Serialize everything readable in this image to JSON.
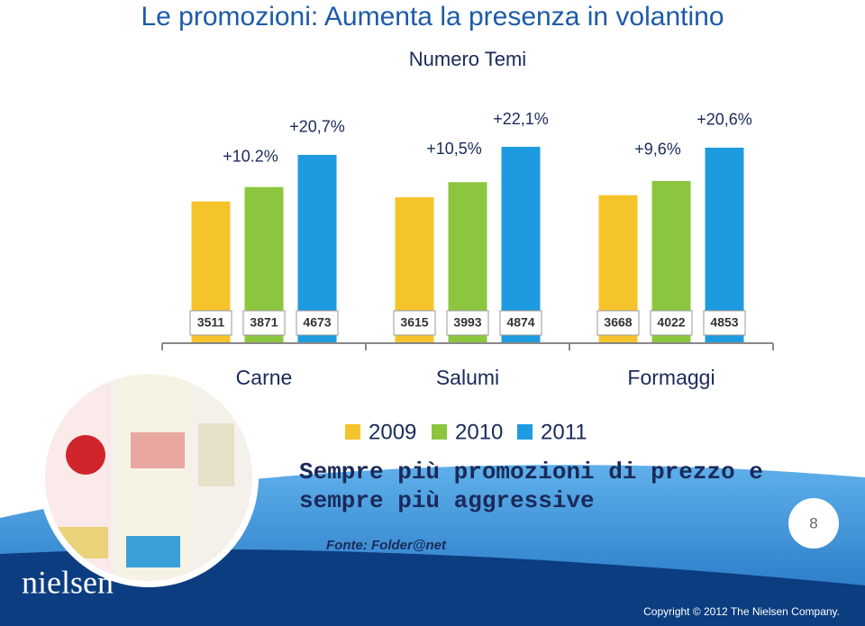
{
  "chart_data": {
    "type": "bar",
    "title": "Le promozioni: Aumenta la presenza in volantino",
    "subtitle": "Numero Temi",
    "categories": [
      "Carne",
      "Salumi",
      "Formaggi"
    ],
    "series": [
      {
        "name": "2009",
        "color": "#f5c42a",
        "values": [
          3511,
          3615,
          3668
        ]
      },
      {
        "name": "2010",
        "color": "#8cc63f",
        "values": [
          3871,
          3993,
          4022
        ],
        "growth_labels": [
          "+10.2%",
          "+10,5%",
          "+9,6%"
        ]
      },
      {
        "name": "2011",
        "color": "#1e9be0",
        "values": [
          4673,
          4874,
          4853
        ],
        "growth_labels": [
          "+20,7%",
          "+22,1%",
          "+20,6%"
        ]
      }
    ],
    "note": [
      "Sempre più promozioni di prezzo e",
      "sempre più aggressive"
    ],
    "source": "Fonte: Folder@net",
    "page_number": "8",
    "logo": "nielsen",
    "copyright": "Copyright © 2012 The Nielsen Company."
  }
}
